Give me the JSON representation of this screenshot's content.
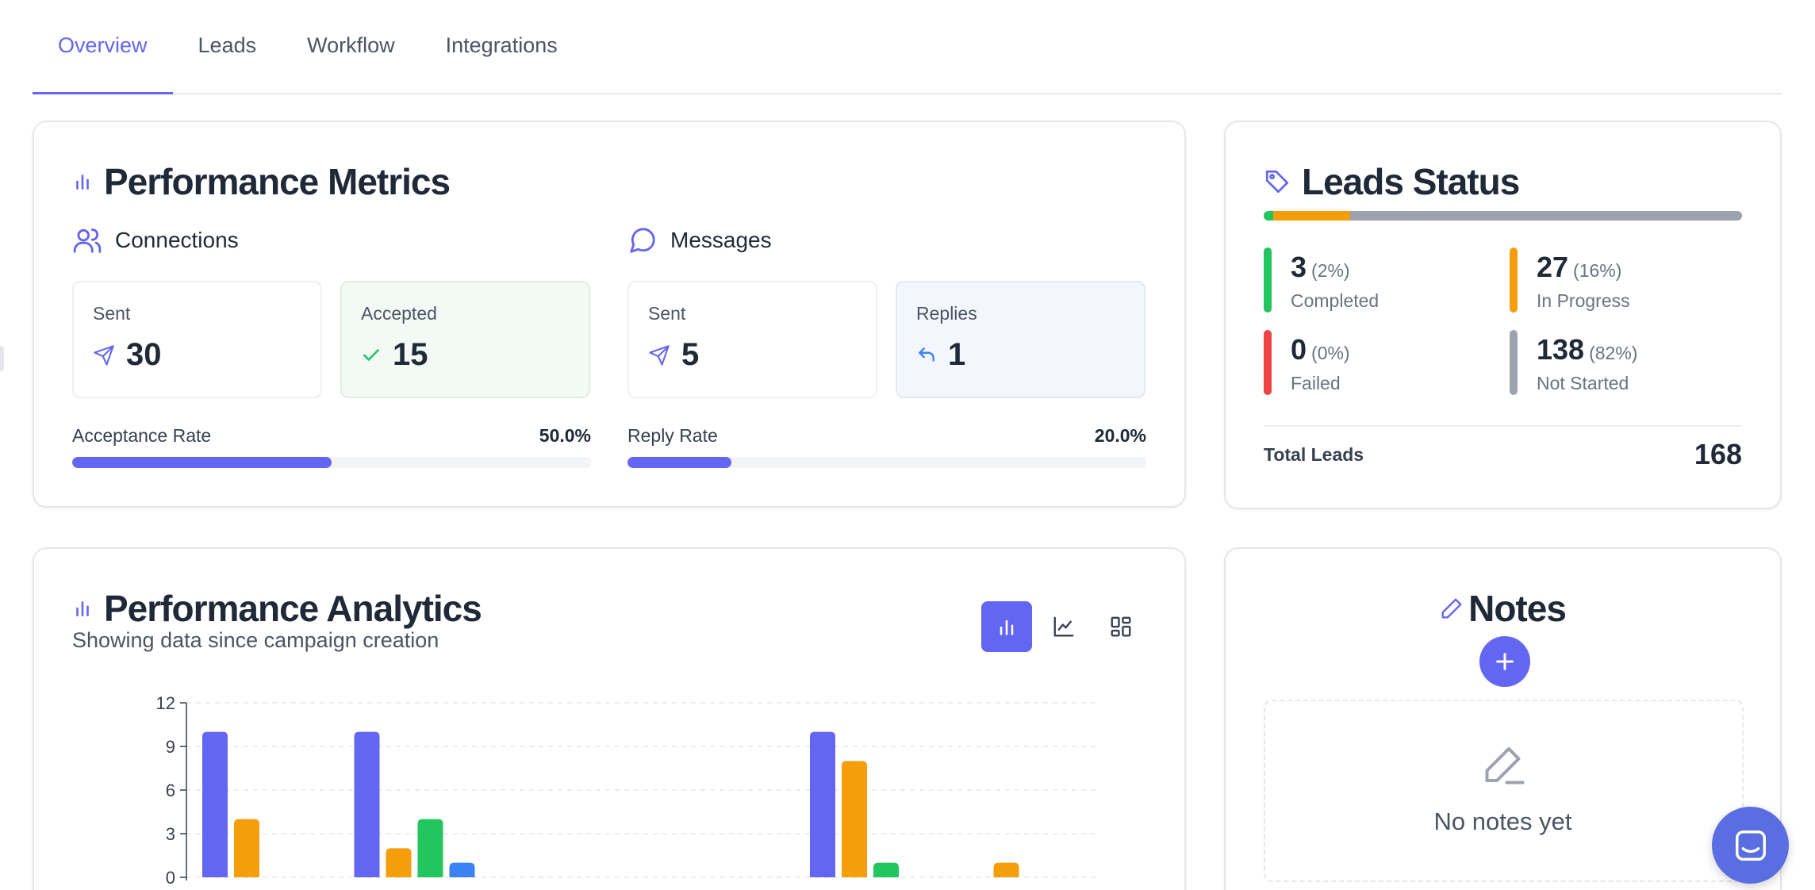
{
  "tabs": [
    {
      "label": "Overview",
      "active": true
    },
    {
      "label": "Leads",
      "active": false
    },
    {
      "label": "Workflow",
      "active": false
    },
    {
      "label": "Integrations",
      "active": false
    }
  ],
  "metrics": {
    "title": "Performance Metrics",
    "connections": {
      "label": "Connections",
      "sent_label": "Sent",
      "sent_value": "30",
      "accepted_label": "Accepted",
      "accepted_value": "15",
      "rate_label": "Acceptance Rate",
      "rate_value": "50.0%",
      "rate_fraction": 0.5
    },
    "messages": {
      "label": "Messages",
      "sent_label": "Sent",
      "sent_value": "5",
      "replies_label": "Replies",
      "replies_value": "1",
      "rate_label": "Reply Rate",
      "rate_value": "20.0%",
      "rate_fraction": 0.2
    }
  },
  "leads_status": {
    "title": "Leads Status",
    "items": [
      {
        "count": "3",
        "pct": "(2%)",
        "name": "Completed",
        "color": "#22c55e",
        "fraction": 0.02
      },
      {
        "count": "27",
        "pct": "(16%)",
        "name": "In Progress",
        "color": "#f59e0b",
        "fraction": 0.16
      },
      {
        "count": "0",
        "pct": "(0%)",
        "name": "Failed",
        "color": "#ef4444",
        "fraction": 0.0
      },
      {
        "count": "138",
        "pct": "(82%)",
        "name": "Not Started",
        "color": "#9ca3af",
        "fraction": 0.82
      }
    ],
    "total_label": "Total Leads",
    "total_value": "168"
  },
  "analytics": {
    "title": "Performance Analytics",
    "subtitle": "Showing data since campaign creation",
    "view_buttons": [
      "bar-chart-icon",
      "line-chart-icon",
      "grid-icon"
    ]
  },
  "chart_data": {
    "type": "bar",
    "ylim": [
      0,
      12
    ],
    "yticks": [
      0,
      3,
      6,
      9,
      12
    ],
    "grid": true,
    "series_colors": [
      "#6366f1",
      "#f59e0b",
      "#22c55e",
      "#3b82f6"
    ],
    "groups": [
      {
        "values": [
          10,
          4,
          0,
          0
        ]
      },
      {
        "values": [
          10,
          2,
          4,
          1
        ]
      },
      {
        "values": [
          0,
          0,
          0,
          0
        ]
      },
      {
        "values": [
          0,
          0,
          0,
          0
        ]
      },
      {
        "values": [
          10,
          8,
          1,
          0
        ]
      },
      {
        "values": [
          0,
          1,
          0,
          0
        ]
      }
    ]
  },
  "notes": {
    "title": "Notes",
    "empty_text": "No notes yet"
  },
  "colors": {
    "accent": "#6366f1"
  }
}
